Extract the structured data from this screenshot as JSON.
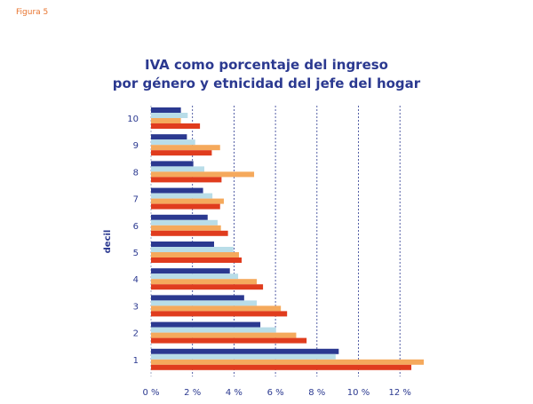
{
  "figure_label": "Figura 5",
  "chart_data": {
    "type": "bar",
    "orientation": "horizontal",
    "title": [
      "IVA como porcentaje del ingreso",
      "por género y etnicidad del jefe del hogar"
    ],
    "ylabel": "decil",
    "xlabel": "",
    "categories": [
      "1",
      "2",
      "3",
      "4",
      "5",
      "6",
      "7",
      "8",
      "9",
      "10"
    ],
    "xlim": [
      0,
      13.5
    ],
    "xticks": [
      0,
      2,
      4,
      6,
      8,
      10,
      12
    ],
    "xtick_labels": [
      "0 %",
      "2 %",
      "4 %",
      "6 %",
      "8 %",
      "10 %",
      "12 %"
    ],
    "grid": "vertical dashed",
    "legend": "none",
    "series": [
      {
        "color": "#2b3990",
        "values": [
          9.05,
          5.27,
          4.49,
          3.8,
          3.04,
          2.73,
          2.51,
          2.04,
          1.73,
          1.44
        ]
      },
      {
        "color": "#b9dde8",
        "values": [
          8.9,
          6.03,
          5.1,
          4.2,
          3.97,
          3.21,
          2.96,
          2.57,
          2.13,
          1.77
        ]
      },
      {
        "color": "#f5a95c",
        "values": [
          13.15,
          7.0,
          6.26,
          5.1,
          4.24,
          3.37,
          3.51,
          4.97,
          3.33,
          1.44
        ]
      },
      {
        "color": "#e03c1e",
        "values": [
          12.55,
          7.5,
          6.56,
          5.4,
          4.37,
          3.71,
          3.33,
          3.4,
          2.93,
          2.36
        ]
      }
    ]
  }
}
